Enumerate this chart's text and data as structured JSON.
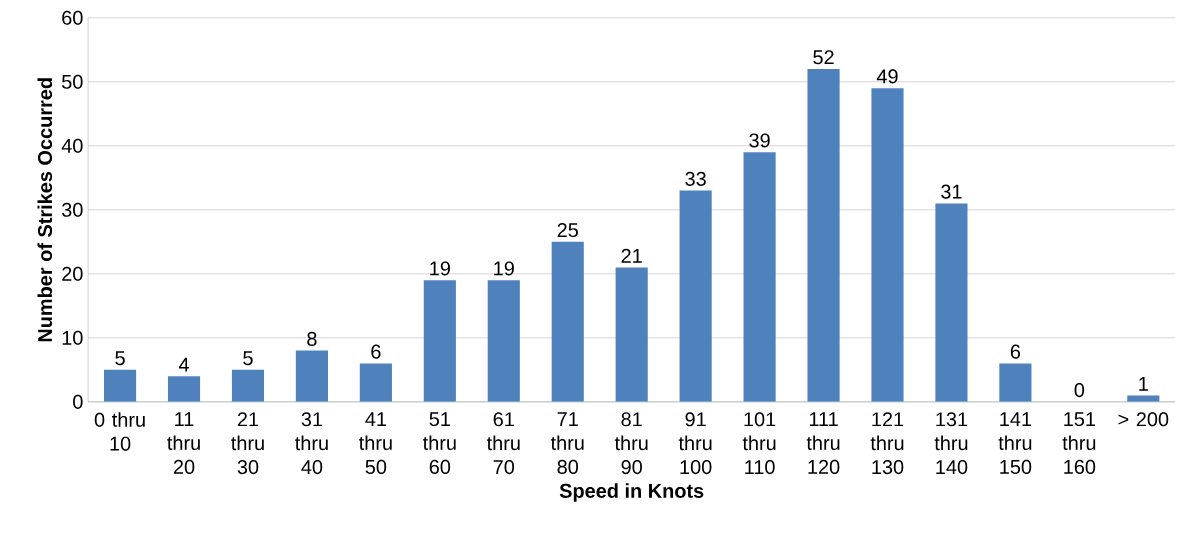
{
  "chart_data": {
    "type": "bar",
    "xlabel": "Speed in Knots",
    "ylabel": "Number of Strikes Occurred",
    "categories": [
      "0 thru 10",
      "11 thru 20",
      "21 thru 30",
      "31 thru 40",
      "41 thru 50",
      "51 thru 60",
      "61 thru 70",
      "71 thru 80",
      "81 thru 90",
      "91 thru 100",
      "101 thru 110",
      "111 thru 120",
      "121 thru 130",
      "131 thru 140",
      "141 thru 150",
      "151 thru 160",
      "> 200"
    ],
    "values": [
      5,
      4,
      5,
      8,
      6,
      19,
      19,
      25,
      21,
      33,
      39,
      52,
      49,
      31,
      6,
      0,
      1
    ],
    "color": "#4f81bd",
    "ylim": [
      0,
      60
    ],
    "yticks": [
      0,
      10,
      20,
      30,
      40,
      50,
      60
    ],
    "grid": "y",
    "data_labels": true
  }
}
